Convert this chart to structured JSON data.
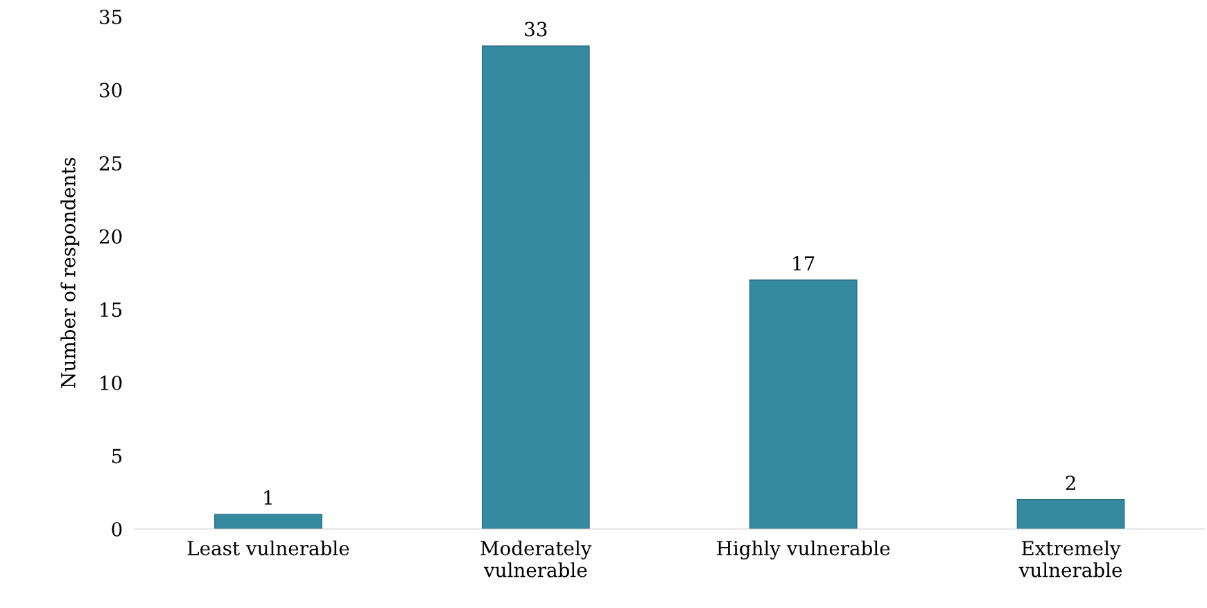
{
  "chart_data": {
    "type": "bar",
    "ylabel": "Number of respondents",
    "categories": [
      "Least vulnerable",
      "Moderately\nvulnerable",
      "Highly vulnerable",
      "Extremely\nvulnerable"
    ],
    "values": [
      1,
      33,
      17,
      2
    ],
    "color": "#368aa0",
    "ylim": [
      0,
      35
    ],
    "yticks": [
      0,
      5,
      10,
      15,
      20,
      25,
      30,
      35
    ],
    "grid": false,
    "legend": false,
    "data_labels": true
  }
}
